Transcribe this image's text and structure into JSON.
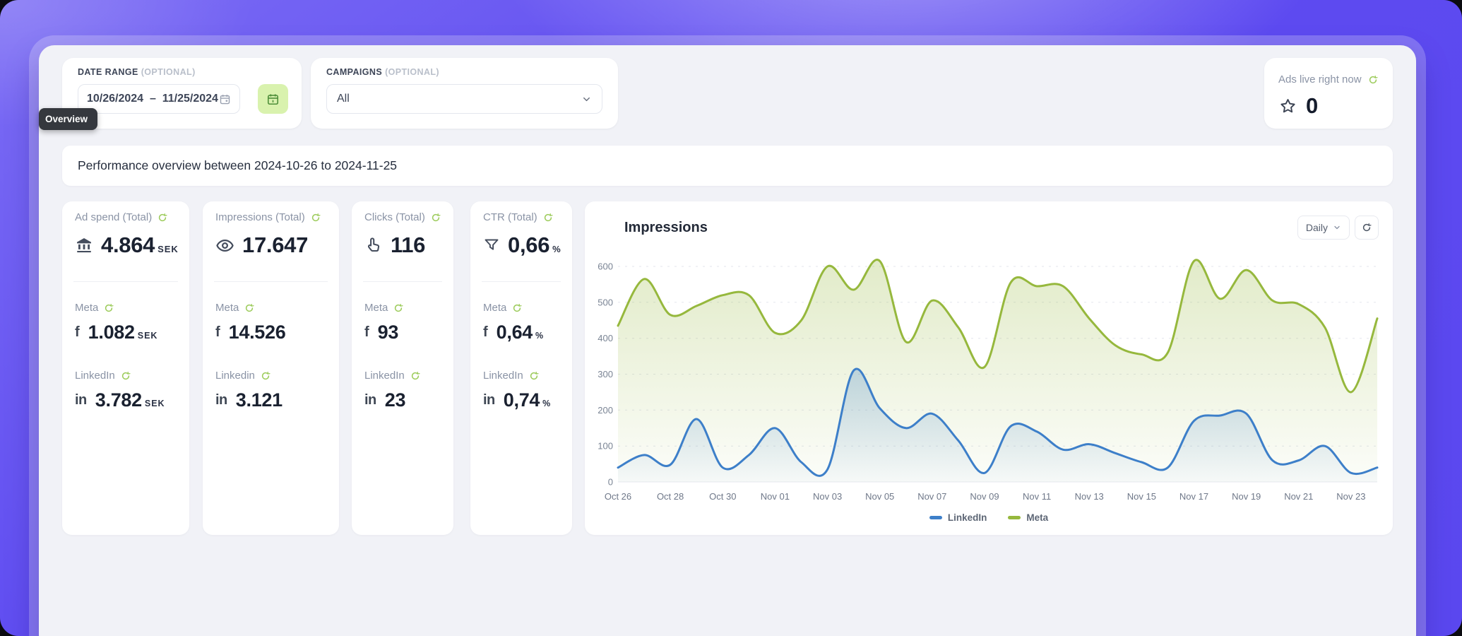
{
  "tooltip": {
    "label": "Overview"
  },
  "filters": {
    "date_range": {
      "label": "DATE RANGE",
      "optional": "(OPTIONAL)",
      "value": "10/26/2024  –  11/25/2024"
    },
    "campaigns": {
      "label": "CAMPAIGNS",
      "optional": "(OPTIONAL)",
      "value": "All"
    }
  },
  "ads_live": {
    "label": "Ads live right now",
    "count": "0"
  },
  "overview_heading": "Performance overview between 2024-10-26 to 2024-11-25",
  "metrics": [
    {
      "title": "Ad spend (Total)",
      "icon": "bank-icon",
      "value": "4.864",
      "suffix": "SEK",
      "platforms": [
        {
          "name": "Meta",
          "value": "1.082",
          "suffix": "SEK"
        },
        {
          "name": "LinkedIn",
          "value": "3.782",
          "suffix": "SEK"
        }
      ]
    },
    {
      "title": "Impressions (Total)",
      "icon": "eye-icon",
      "value": "17.647",
      "suffix": "",
      "platforms": [
        {
          "name": "Meta",
          "value": "14.526",
          "suffix": ""
        },
        {
          "name": "Linkedin",
          "value": "3.121",
          "suffix": ""
        }
      ]
    },
    {
      "title": "Clicks (Total)",
      "icon": "click-icon",
      "value": "116",
      "suffix": "",
      "platforms": [
        {
          "name": "Meta",
          "value": "93",
          "suffix": ""
        },
        {
          "name": "LinkedIn",
          "value": "23",
          "suffix": ""
        }
      ]
    },
    {
      "title": "CTR (Total)",
      "icon": "funnel-icon",
      "value": "0,66",
      "suffix": "%",
      "platforms": [
        {
          "name": "Meta",
          "value": "0,64",
          "suffix": "%"
        },
        {
          "name": "LinkedIn",
          "value": "0,74",
          "suffix": "%"
        }
      ]
    }
  ],
  "chart": {
    "title": "Impressions",
    "interval": "Daily"
  },
  "chart_data": {
    "type": "area",
    "title": "Impressions",
    "x": [
      "Oct 26",
      "Oct 27",
      "Oct 28",
      "Oct 29",
      "Oct 30",
      "Oct 31",
      "Nov 01",
      "Nov 02",
      "Nov 03",
      "Nov 04",
      "Nov 05",
      "Nov 06",
      "Nov 07",
      "Nov 08",
      "Nov 09",
      "Nov 10",
      "Nov 11",
      "Nov 12",
      "Nov 13",
      "Nov 14",
      "Nov 15",
      "Nov 16",
      "Nov 17",
      "Nov 18",
      "Nov 19",
      "Nov 20",
      "Nov 21",
      "Nov 22",
      "Nov 23",
      "Nov 24"
    ],
    "x_tick_every": 2,
    "series": [
      {
        "name": "LinkedIn",
        "color": "#3d7fc9",
        "values": [
          40,
          75,
          48,
          175,
          40,
          75,
          150,
          55,
          35,
          310,
          205,
          150,
          190,
          115,
          25,
          155,
          140,
          90,
          105,
          80,
          55,
          40,
          170,
          185,
          190,
          60,
          60,
          100,
          25,
          40
        ]
      },
      {
        "name": "Meta",
        "color": "#96b83d",
        "values": [
          435,
          565,
          465,
          490,
          520,
          520,
          415,
          450,
          600,
          535,
          615,
          390,
          505,
          430,
          320,
          555,
          545,
          545,
          455,
          380,
          355,
          360,
          615,
          510,
          590,
          505,
          495,
          430,
          250,
          455
        ]
      }
    ],
    "ylim": [
      0,
      600
    ],
    "yticks": [
      0,
      100,
      200,
      300,
      400,
      500,
      600
    ],
    "grid": true,
    "legend_position": "bottom"
  }
}
